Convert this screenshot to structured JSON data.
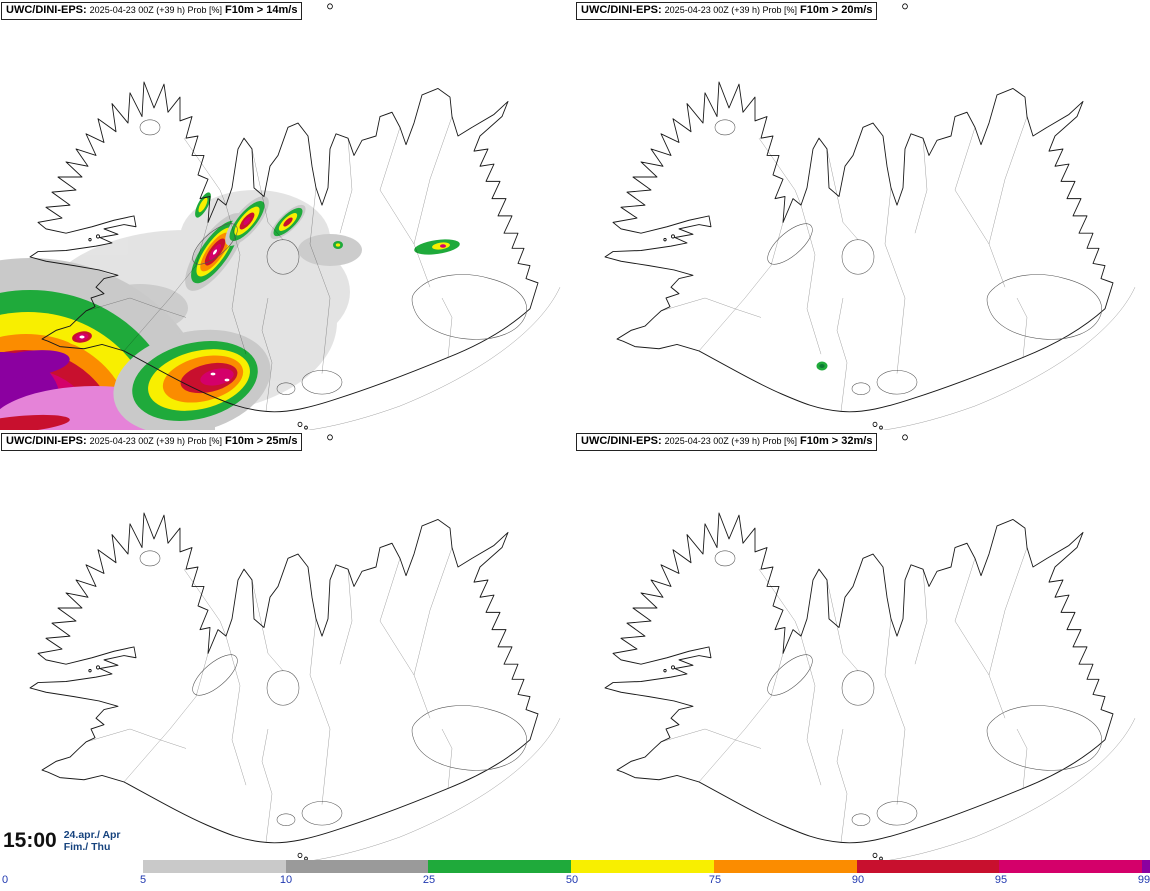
{
  "panels": [
    {
      "model": "UWC/DINI-EPS:",
      "run": "2025-04-23 00Z (+39 h) Prob [%]",
      "threshold": "F10m > 14m/s"
    },
    {
      "model": "UWC/DINI-EPS:",
      "run": "2025-04-23 00Z (+39 h) Prob [%]",
      "threshold": "F10m > 20m/s"
    },
    {
      "model": "UWC/DINI-EPS:",
      "run": "2025-04-23 00Z (+39 h) Prob [%]",
      "threshold": "F10m > 25m/s"
    },
    {
      "model": "UWC/DINI-EPS:",
      "run": "2025-04-23 00Z (+39 h) Prob [%]",
      "threshold": "F10m > 32m/s"
    }
  ],
  "footer": {
    "time": "15:00",
    "date": "24.apr./ Apr",
    "day": "Fim./ Thu"
  },
  "colorbar": {
    "unit": "Prob [%]",
    "ticks": [
      "0",
      "5",
      "10",
      "25",
      "50",
      "75",
      "90",
      "95",
      "99"
    ],
    "segments": [
      {
        "from": "5",
        "to": "10",
        "color": "#c9c9c9"
      },
      {
        "from": "10",
        "to": "25",
        "color": "#9a9a9a"
      },
      {
        "from": "25",
        "to": "50",
        "color": "#1faa3b"
      },
      {
        "from": "50",
        "to": "75",
        "color": "#f8ef00"
      },
      {
        "from": "75",
        "to": "90",
        "color": "#fb8c00"
      },
      {
        "from": "90",
        "to": "95",
        "color": "#c8102e"
      },
      {
        "from": "95",
        "to": "99",
        "color": "#d4006a"
      },
      {
        "from": "99",
        "to": "",
        "color": "#8b00a0",
        "tail": true
      }
    ]
  },
  "palette": {
    "gray_light": "#c9c9c9",
    "gray": "#9a9a9a",
    "green": "#1faa3b",
    "green_dark": "#0c7a33",
    "yellow": "#f8ef00",
    "orange": "#fb8c00",
    "red": "#c8102e",
    "magenta": "#d4006a",
    "pink": "#e583d8",
    "purple": "#8b00a0",
    "tick_blue": "#2038b0",
    "date_navy": "#16437e"
  }
}
